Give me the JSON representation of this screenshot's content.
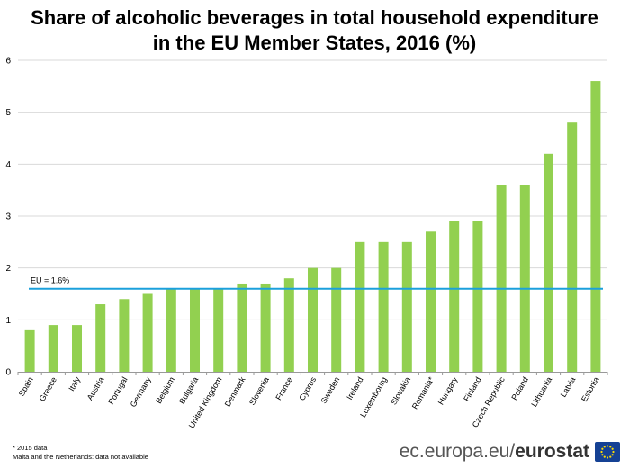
{
  "chart_data": {
    "type": "bar",
    "title": [
      "Share of alcoholic beverages in total household expenditure",
      "in the EU Member States, 2016 (%)"
    ],
    "categories": [
      "Spain",
      "Greece",
      "Italy",
      "Austria",
      "Portugal",
      "Germany",
      "Belgium",
      "Bulgaria",
      "United Kingdom",
      "Denmark",
      "Slovenia",
      "France",
      "Cyprus",
      "Sweden",
      "Ireland",
      "Luxembourg",
      "Slovakia",
      "Romania*",
      "Hungary",
      "Finland",
      "Czech Republic",
      "Poland",
      "Lithuania",
      "Latvia",
      "Estonia"
    ],
    "values": [
      0.8,
      0.9,
      0.9,
      1.3,
      1.4,
      1.5,
      1.6,
      1.6,
      1.6,
      1.7,
      1.7,
      1.8,
      2.0,
      2.0,
      2.5,
      2.5,
      2.5,
      2.7,
      2.9,
      2.9,
      3.6,
      3.6,
      4.2,
      4.8,
      5.6
    ],
    "ylim": [
      0,
      6
    ],
    "yticks": [
      0,
      1,
      2,
      3,
      4,
      5,
      6
    ],
    "grid": true,
    "bar_color": "#92d050",
    "reference_line": {
      "value": 1.6,
      "label": "EU = 1.6%",
      "color": "#1ba0dc"
    }
  },
  "footnotes": [
    "* 2015 data",
    "Malta and the Netherlands: data not available"
  ],
  "brand": {
    "prefix": "ec.europa.eu/",
    "name": "eurostat",
    "icon": "eu-flag-icon"
  }
}
